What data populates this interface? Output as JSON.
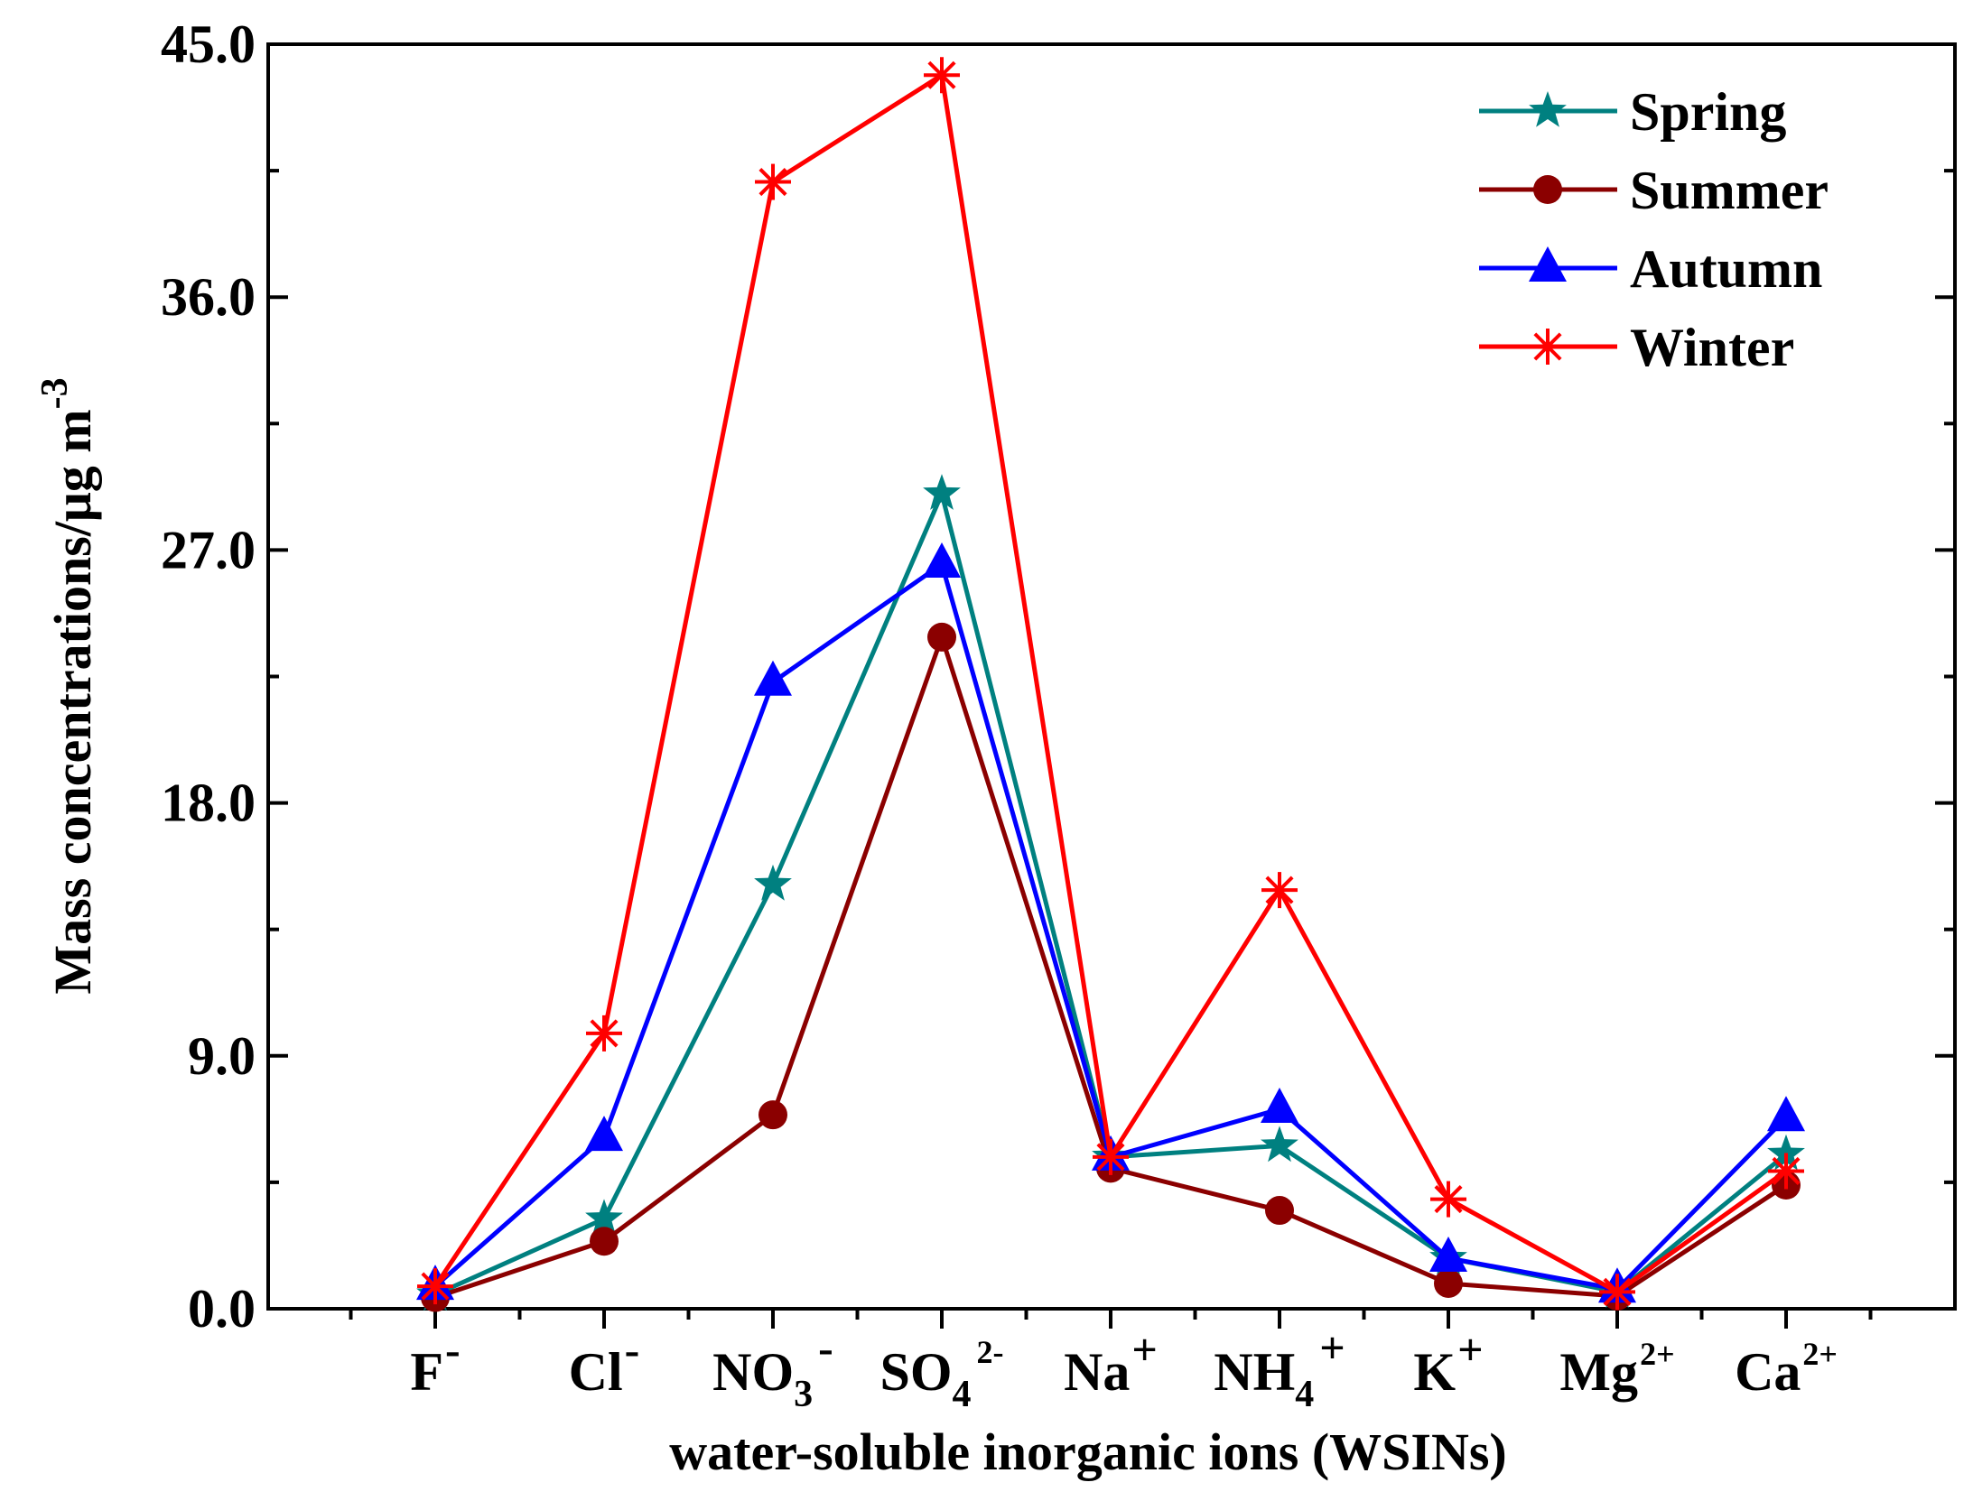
{
  "chart_data": {
    "type": "line",
    "title": "",
    "xlabel": "water-soluble inorganic ions (WSINs)",
    "ylabel": "Mass concentrations/μg m",
    "ylabel_sup": "-3",
    "ylim": [
      0,
      45
    ],
    "yticks": [
      0,
      9,
      18,
      27,
      36,
      45
    ],
    "ytick_labels": [
      "0.0",
      "9.0",
      "18.0",
      "27.0",
      "36.0",
      "45.0"
    ],
    "grid": false,
    "legend_position": "top-right",
    "categories": [
      {
        "base": "F",
        "sub": "",
        "sup": "-"
      },
      {
        "base": "Cl",
        "sub": "",
        "sup": "-"
      },
      {
        "base": "NO",
        "sub": "3",
        "sup": "-"
      },
      {
        "base": "SO",
        "sub": "4",
        "sup": "2-"
      },
      {
        "base": "Na",
        "sub": "",
        "sup": "+"
      },
      {
        "base": "NH",
        "sub": "4",
        "sup": "+"
      },
      {
        "base": "K",
        "sub": "",
        "sup": "+"
      },
      {
        "base": "Mg",
        "sub": "",
        "sup": "2+"
      },
      {
        "base": "Ca",
        "sub": "",
        "sup": "2+"
      }
    ],
    "series": [
      {
        "name": "Spring",
        "color": "#008080",
        "marker": "star",
        "values": [
          0.5,
          3.2,
          15.1,
          29.0,
          5.4,
          5.8,
          1.8,
          0.6,
          5.5
        ]
      },
      {
        "name": "Summer",
        "color": "#8B0000",
        "marker": "circle",
        "values": [
          0.4,
          2.4,
          6.9,
          23.9,
          5.0,
          3.5,
          0.9,
          0.45,
          4.4
        ]
      },
      {
        "name": "Autumn",
        "color": "#0000FF",
        "marker": "triangle",
        "values": [
          0.8,
          6.1,
          22.3,
          26.5,
          5.4,
          7.1,
          1.8,
          0.7,
          6.8
        ]
      },
      {
        "name": "Winter",
        "color": "#FF0000",
        "marker": "asterisk",
        "values": [
          0.8,
          9.8,
          40.1,
          43.9,
          5.4,
          14.9,
          3.9,
          0.6,
          4.9
        ]
      }
    ]
  }
}
